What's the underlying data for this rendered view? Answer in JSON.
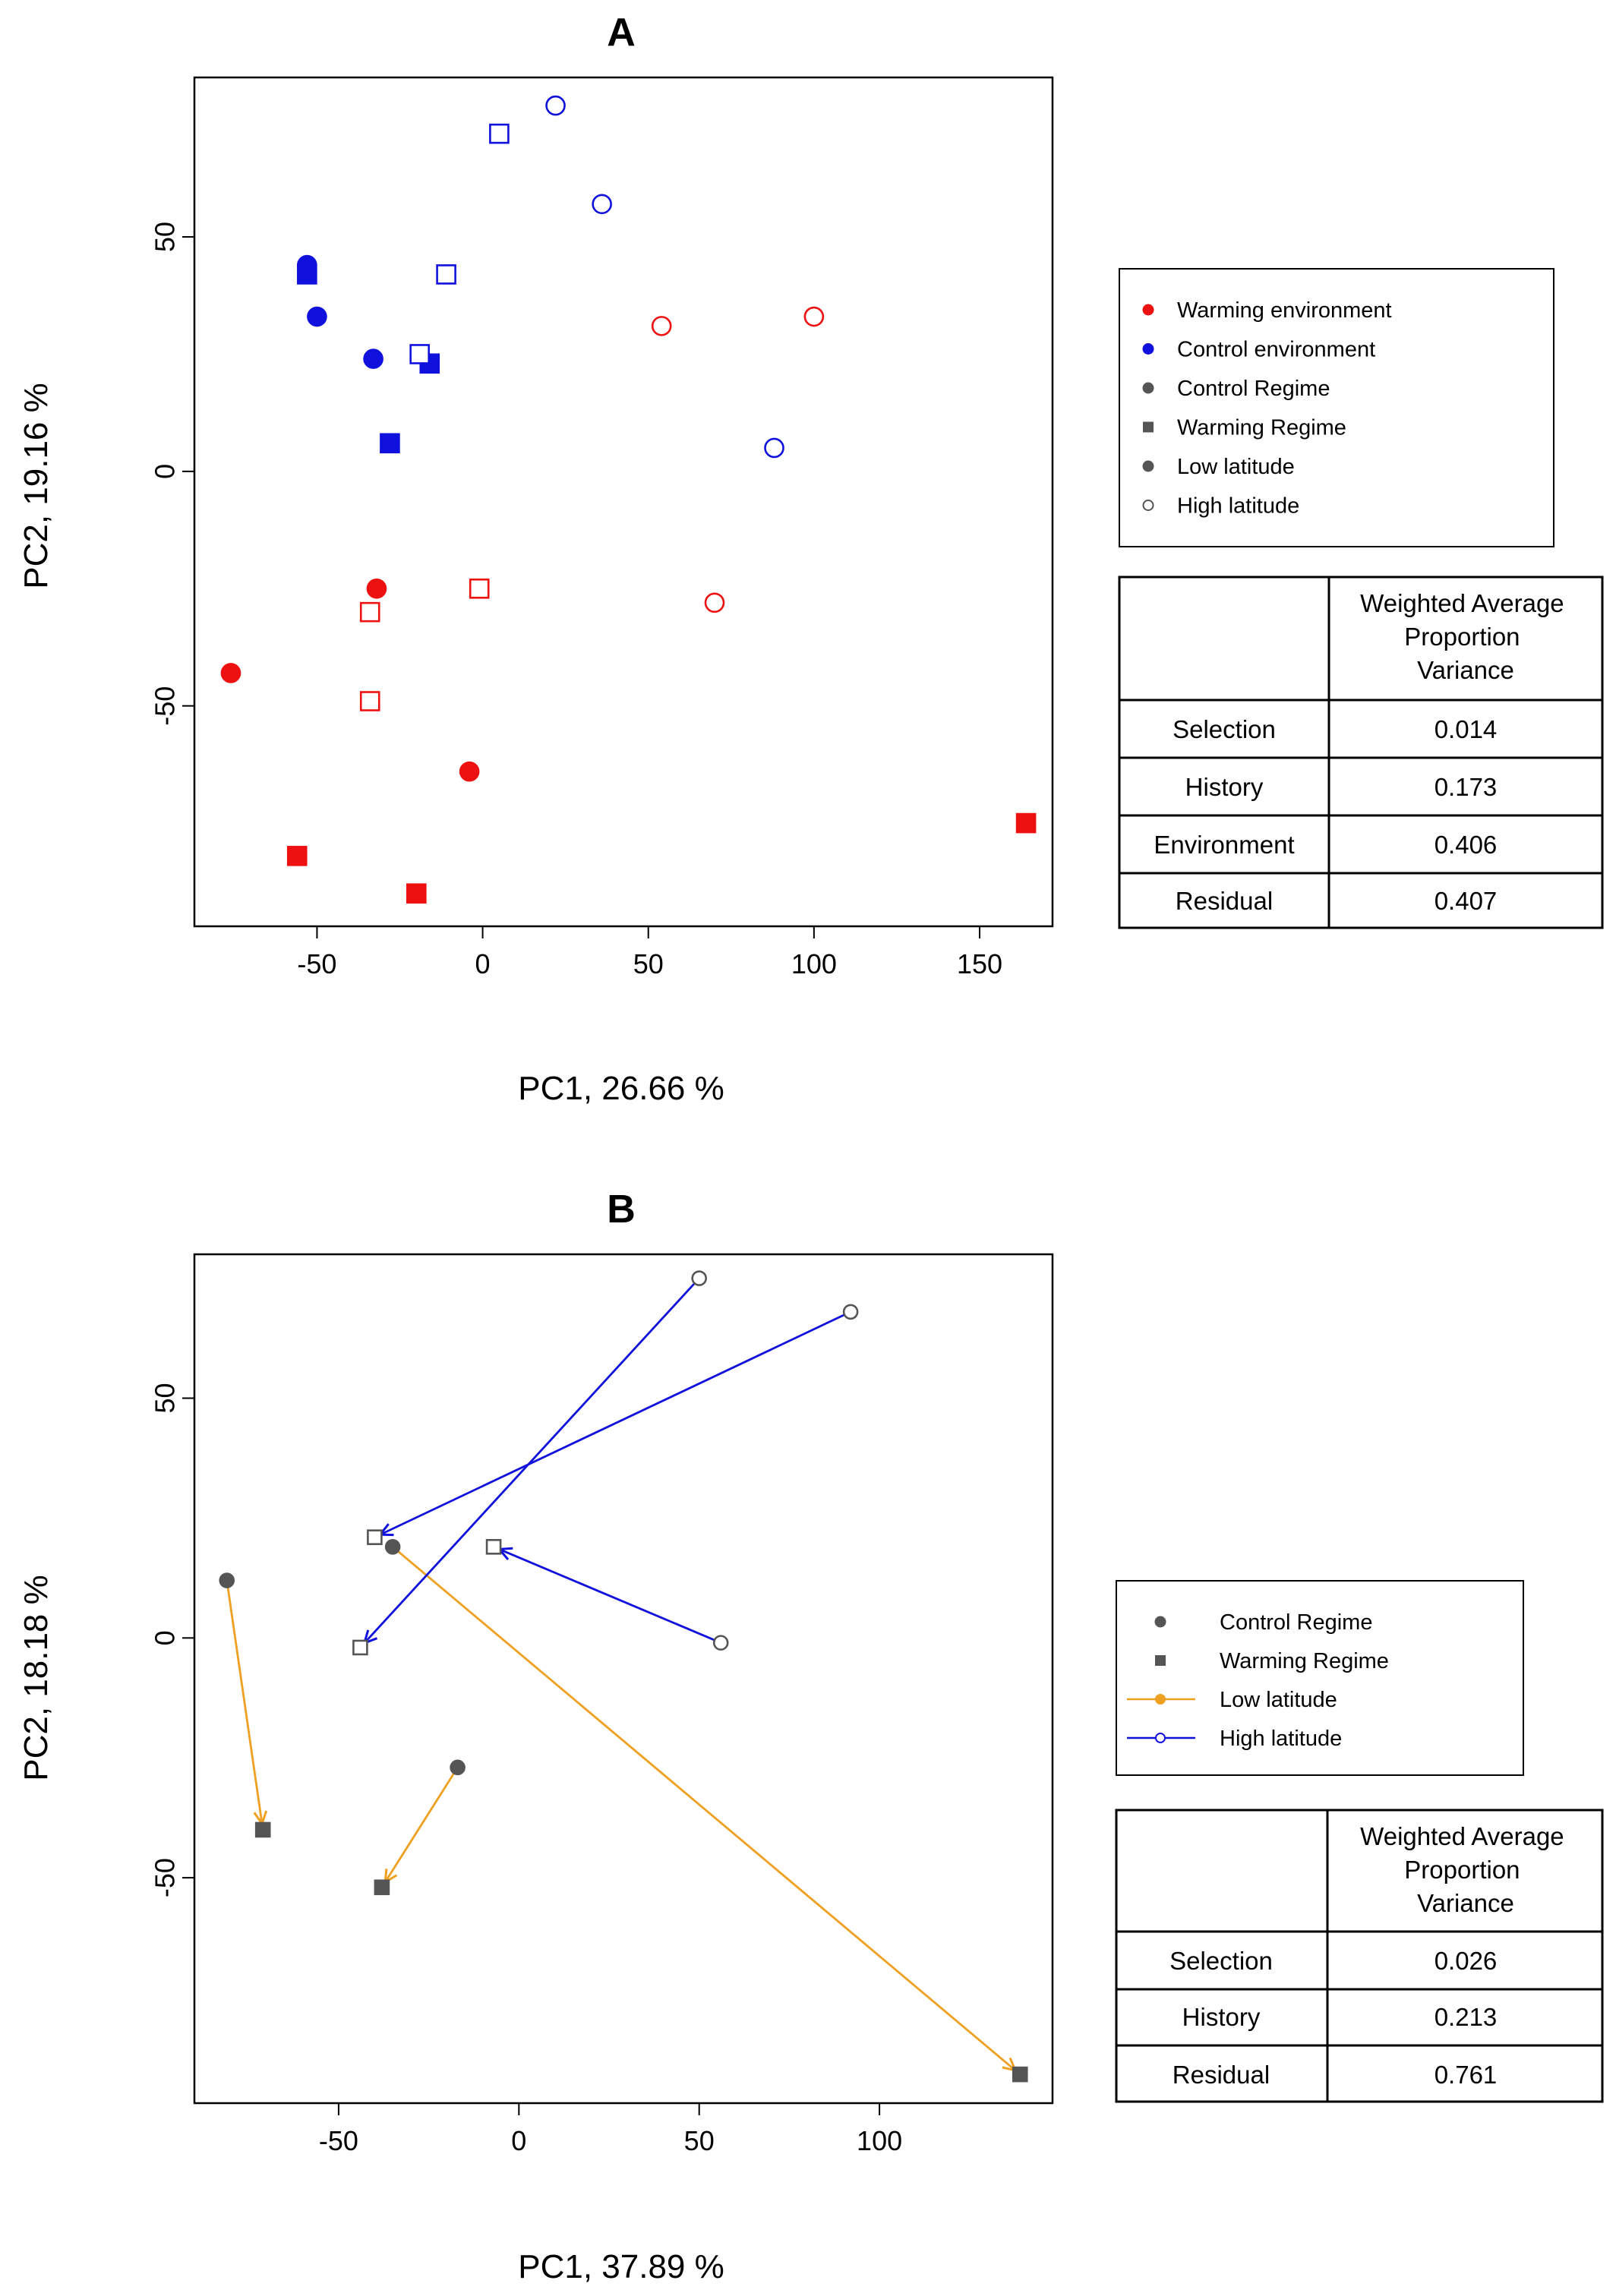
{
  "chart_data": [
    {
      "type": "scatter",
      "title": "A",
      "xlabel": "PC1,  26.66 %",
      "ylabel": "PC2,  19.16 %",
      "xlim": [
        -87,
        172
      ],
      "ylim": [
        -97,
        84
      ],
      "xticks": [
        -50,
        0,
        50,
        100,
        150
      ],
      "yticks": [
        -50,
        0,
        50
      ],
      "colors": {
        "warming": "#ee1111",
        "control": "#1111dd"
      },
      "series": [
        {
          "name": "Warming environment",
          "color": "warming",
          "marker": "filled-circle",
          "x": [
            -76,
            -32,
            -4
          ],
          "y": [
            -43,
            -25,
            -64
          ]
        },
        {
          "name": "Warming environment",
          "color": "warming",
          "marker": "filled-square",
          "x": [
            -56,
            -20,
            164
          ],
          "y": [
            -82,
            -90,
            -75
          ]
        },
        {
          "name": "Warming environment",
          "color": "warming",
          "marker": "open-circle",
          "x": [
            54,
            100,
            70
          ],
          "y": [
            31,
            33,
            -28
          ]
        },
        {
          "name": "Warming environment",
          "color": "warming",
          "marker": "open-square",
          "x": [
            -34,
            -34,
            -1
          ],
          "y": [
            -30,
            -49,
            -25
          ]
        },
        {
          "name": "Control environment",
          "color": "control",
          "marker": "filled-circle",
          "x": [
            -53,
            -50,
            -33
          ],
          "y": [
            44,
            33,
            24
          ]
        },
        {
          "name": "Control environment",
          "color": "control",
          "marker": "filled-square",
          "x": [
            -53,
            -16,
            -28
          ],
          "y": [
            42,
            23,
            6
          ]
        },
        {
          "name": "Control environment",
          "color": "control",
          "marker": "open-circle",
          "x": [
            22,
            36,
            88
          ],
          "y": [
            78,
            57,
            5
          ]
        },
        {
          "name": "Control environment",
          "color": "control",
          "marker": "open-square",
          "x": [
            5,
            -11,
            -19
          ],
          "y": [
            72,
            42,
            25
          ]
        }
      ],
      "legend": {
        "placement": "right",
        "items": [
          {
            "label": "Warming environment",
            "symbol": "filled-circle",
            "color": "#ee1111"
          },
          {
            "label": "Control environment",
            "symbol": "filled-circle",
            "color": "#1111dd"
          },
          {
            "label": "Control Regime",
            "symbol": "filled-circle",
            "color": "#555555"
          },
          {
            "label": "Warming Regime",
            "symbol": "filled-square",
            "color": "#555555"
          },
          {
            "label": "Low latitude",
            "symbol": "filled-circle",
            "color": "#555555"
          },
          {
            "label": "High latitude",
            "symbol": "open-circle",
            "color": "#555555"
          }
        ]
      },
      "table": {
        "header": "Weighted Average Proportion Variance",
        "header_lines": [
          "Weighted Average",
          "Proportion",
          "Variance"
        ],
        "rows": [
          {
            "label": "Selection",
            "value": "0.014"
          },
          {
            "label": "History",
            "value": "0.173"
          },
          {
            "label": "Environment",
            "value": "0.406"
          },
          {
            "label": "Residual",
            "value": "0.407"
          }
        ]
      }
    },
    {
      "type": "scatter",
      "title": "B",
      "xlabel": "PC1,  37.89 %",
      "ylabel": "PC2,  18.18 %",
      "xlim": [
        -90,
        148
      ],
      "ylim": [
        -97,
        80
      ],
      "xticks": [
        -50,
        0,
        50,
        100
      ],
      "yticks": [
        -50,
        0,
        50
      ],
      "colors": {
        "low": "#f0a020",
        "high": "#1111dd",
        "point": "#555555"
      },
      "points": [
        {
          "x": -81,
          "y": 12,
          "marker": "filled-circle"
        },
        {
          "x": -71,
          "y": -40,
          "marker": "filled-square"
        },
        {
          "x": -17,
          "y": -27,
          "marker": "filled-circle"
        },
        {
          "x": -38,
          "y": -52,
          "marker": "filled-square"
        },
        {
          "x": -35,
          "y": 19,
          "marker": "filled-circle"
        },
        {
          "x": 139,
          "y": -91,
          "marker": "filled-square"
        },
        {
          "x": 50,
          "y": 75,
          "marker": "open-circle"
        },
        {
          "x": -44,
          "y": -2,
          "marker": "open-square"
        },
        {
          "x": 92,
          "y": 68,
          "marker": "open-circle"
        },
        {
          "x": -40,
          "y": 21,
          "marker": "open-square"
        },
        {
          "x": 56,
          "y": -1,
          "marker": "open-circle"
        },
        {
          "x": -7,
          "y": 19,
          "marker": "open-square"
        }
      ],
      "arrows": [
        {
          "from": [
            -81,
            12
          ],
          "to": [
            -71,
            -40
          ],
          "color": "low"
        },
        {
          "from": [
            -17,
            -27
          ],
          "to": [
            -38,
            -52
          ],
          "color": "low"
        },
        {
          "from": [
            -35,
            19
          ],
          "to": [
            139,
            -91
          ],
          "color": "low"
        },
        {
          "from": [
            50,
            75
          ],
          "to": [
            -44,
            -2
          ],
          "color": "high"
        },
        {
          "from": [
            92,
            68
          ],
          "to": [
            -40,
            21
          ],
          "color": "high"
        },
        {
          "from": [
            56,
            -1
          ],
          "to": [
            -7,
            19
          ],
          "color": "high"
        }
      ],
      "legend": {
        "placement": "right",
        "items": [
          {
            "label": "Control Regime",
            "symbol": "filled-circle",
            "color": "#555555"
          },
          {
            "label": "Warming Regime",
            "symbol": "filled-square",
            "color": "#555555"
          },
          {
            "label": "Low latitude",
            "symbol": "line-filled-circle",
            "color": "#f0a020"
          },
          {
            "label": "High latitude",
            "symbol": "line-open-circle",
            "color": "#1111dd"
          }
        ]
      },
      "table": {
        "header": "Weighted Average Proportion Variance",
        "header_lines": [
          "Weighted Average",
          "Proportion",
          "Variance"
        ],
        "rows": [
          {
            "label": "Selection",
            "value": "0.026"
          },
          {
            "label": "History",
            "value": "0.213"
          },
          {
            "label": "Residual",
            "value": "0.761"
          }
        ]
      }
    }
  ]
}
